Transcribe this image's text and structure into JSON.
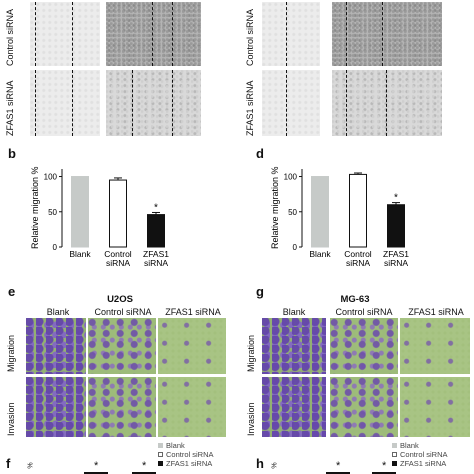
{
  "panel_letters": {
    "b": "b",
    "d": "d",
    "e": "e",
    "g": "g",
    "f": "f",
    "h": "h"
  },
  "wound_rows": {
    "control": "Control siRNA",
    "zfas1": "ZFAS1 siRNA"
  },
  "transwell": {
    "columns": [
      "Blank",
      "Control siRNA",
      "ZFAS1 siRNA"
    ],
    "rows": [
      "Migration",
      "Invasion"
    ],
    "left_title": "U2OS",
    "right_title": "MG-63"
  },
  "legend": [
    "Blank",
    "Control siRNA",
    "ZFAS1 siRNA"
  ],
  "colors": {
    "blank": "#c6cac8",
    "control": "#ffffff",
    "zfas1": "#111111",
    "transwell_bg": "#9dbb7a",
    "cells": "#6e50aa"
  },
  "chart_data": [
    {
      "panel": "b",
      "type": "bar",
      "categories": [
        "Blank",
        "Control siRNA",
        "ZFAS1 siRNA"
      ],
      "values": [
        100,
        95,
        46
      ],
      "errors": [
        0,
        3,
        3
      ],
      "significance": [
        "",
        "",
        "*"
      ],
      "ylabel": "Relative migration %",
      "ylim": [
        0,
        105
      ],
      "yticks": [
        0,
        50,
        100
      ]
    },
    {
      "panel": "d",
      "type": "bar",
      "categories": [
        "Blank",
        "Control siRNA",
        "ZFAS1 siRNA"
      ],
      "values": [
        100,
        103,
        60
      ],
      "errors": [
        0,
        2,
        3
      ],
      "significance": [
        "",
        "",
        "*"
      ],
      "ylabel": "Relative migration %",
      "ylim": [
        0,
        105
      ],
      "yticks": [
        0,
        50,
        100
      ]
    }
  ],
  "bottom_stars": {
    "f": [
      "*",
      "*"
    ],
    "h": [
      "*",
      "*"
    ]
  },
  "bottom_axis_fragment": "%"
}
